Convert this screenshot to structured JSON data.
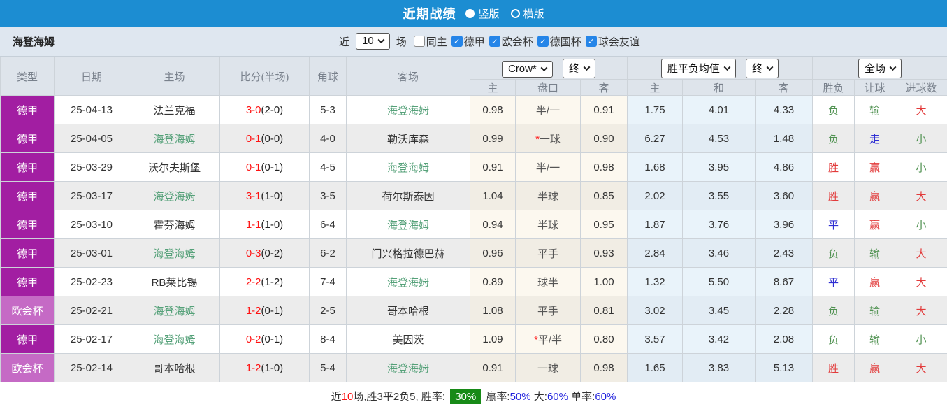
{
  "title_bar": {
    "title": "近期战绩",
    "view_options": [
      {
        "label": "竖版",
        "selected": true
      },
      {
        "label": "横版",
        "selected": false
      }
    ]
  },
  "filter_bar": {
    "team": "海登海姆",
    "recent_prefix": "近",
    "recent_count": "10",
    "recent_suffix": "场",
    "filters": [
      {
        "label": "同主",
        "checked": false
      },
      {
        "label": "德甲",
        "checked": true
      },
      {
        "label": "欧会杯",
        "checked": true
      },
      {
        "label": "德国杯",
        "checked": true
      },
      {
        "label": "球会友谊",
        "checked": true
      }
    ]
  },
  "table": {
    "controls": {
      "odds_company": "Crow*",
      "odds_stage": "终",
      "mean_label": "胜平负均值",
      "mean_stage": "终",
      "scope": "全场"
    },
    "main_headers": [
      "类型",
      "日期",
      "主场",
      "比分(半场)",
      "角球",
      "客场"
    ],
    "sub_headers": [
      "主",
      "盘口",
      "客",
      "主",
      "和",
      "客",
      "胜负",
      "让球",
      "进球数"
    ],
    "rows": [
      {
        "league": "德甲",
        "lg": "dj",
        "date": "25-04-13",
        "home": "法兰克福",
        "home_team": false,
        "score": "3-0",
        "half": "(2-0)",
        "corners": "5-3",
        "away": "海登海姆",
        "away_team": true,
        "o1": "0.98",
        "hcp": "半/一",
        "star": false,
        "o2": "0.91",
        "m1": "1.75",
        "m2": "4.01",
        "m3": "4.33",
        "res": "负",
        "res_c": "g",
        "let": "输",
        "let_c": "g",
        "goal": "大",
        "goal_c": "r"
      },
      {
        "league": "德甲",
        "lg": "dj",
        "date": "25-04-05",
        "home": "海登海姆",
        "home_team": true,
        "score": "0-1",
        "half": "(0-0)",
        "corners": "4-0",
        "away": "勒沃库森",
        "away_team": false,
        "o1": "0.99",
        "hcp": "一球",
        "star": true,
        "o2": "0.90",
        "m1": "6.27",
        "m2": "4.53",
        "m3": "1.48",
        "res": "负",
        "res_c": "g",
        "let": "走",
        "let_c": "b",
        "goal": "小",
        "goal_c": "g"
      },
      {
        "league": "德甲",
        "lg": "dj",
        "date": "25-03-29",
        "home": "沃尔夫斯堡",
        "home_team": false,
        "score": "0-1",
        "half": "(0-1)",
        "corners": "4-5",
        "away": "海登海姆",
        "away_team": true,
        "o1": "0.91",
        "hcp": "半/一",
        "star": false,
        "o2": "0.98",
        "m1": "1.68",
        "m2": "3.95",
        "m3": "4.86",
        "res": "胜",
        "res_c": "r",
        "let": "赢",
        "let_c": "r",
        "goal": "小",
        "goal_c": "g"
      },
      {
        "league": "德甲",
        "lg": "dj",
        "date": "25-03-17",
        "home": "海登海姆",
        "home_team": true,
        "score": "3-1",
        "half": "(1-0)",
        "corners": "3-5",
        "away": "荷尔斯泰因",
        "away_team": false,
        "o1": "1.04",
        "hcp": "半球",
        "star": false,
        "o2": "0.85",
        "m1": "2.02",
        "m2": "3.55",
        "m3": "3.60",
        "res": "胜",
        "res_c": "r",
        "let": "赢",
        "let_c": "r",
        "goal": "大",
        "goal_c": "r"
      },
      {
        "league": "德甲",
        "lg": "dj",
        "date": "25-03-10",
        "home": "霍芬海姆",
        "home_team": false,
        "score": "1-1",
        "half": "(1-0)",
        "corners": "6-4",
        "away": "海登海姆",
        "away_team": true,
        "o1": "0.94",
        "hcp": "半球",
        "star": false,
        "o2": "0.95",
        "m1": "1.87",
        "m2": "3.76",
        "m3": "3.96",
        "res": "平",
        "res_c": "b",
        "let": "赢",
        "let_c": "r",
        "goal": "小",
        "goal_c": "g"
      },
      {
        "league": "德甲",
        "lg": "dj",
        "date": "25-03-01",
        "home": "海登海姆",
        "home_team": true,
        "score": "0-3",
        "half": "(0-2)",
        "corners": "6-2",
        "away": "门兴格拉德巴赫",
        "away_team": false,
        "o1": "0.96",
        "hcp": "平手",
        "star": false,
        "o2": "0.93",
        "m1": "2.84",
        "m2": "3.46",
        "m3": "2.43",
        "res": "负",
        "res_c": "g",
        "let": "输",
        "let_c": "g",
        "goal": "大",
        "goal_c": "r"
      },
      {
        "league": "德甲",
        "lg": "dj",
        "date": "25-02-23",
        "home": "RB莱比锡",
        "home_team": false,
        "score": "2-2",
        "half": "(1-2)",
        "corners": "7-4",
        "away": "海登海姆",
        "away_team": true,
        "o1": "0.89",
        "hcp": "球半",
        "star": false,
        "o2": "1.00",
        "m1": "1.32",
        "m2": "5.50",
        "m3": "8.67",
        "res": "平",
        "res_c": "b",
        "let": "赢",
        "let_c": "r",
        "goal": "大",
        "goal_c": "r"
      },
      {
        "league": "欧会杯",
        "lg": "ohb",
        "date": "25-02-21",
        "home": "海登海姆",
        "home_team": true,
        "score": "1-2",
        "half": "(0-1)",
        "corners": "2-5",
        "away": "哥本哈根",
        "away_team": false,
        "o1": "1.08",
        "hcp": "平手",
        "star": false,
        "o2": "0.81",
        "m1": "3.02",
        "m2": "3.45",
        "m3": "2.28",
        "res": "负",
        "res_c": "g",
        "let": "输",
        "let_c": "g",
        "goal": "大",
        "goal_c": "r"
      },
      {
        "league": "德甲",
        "lg": "dj",
        "date": "25-02-17",
        "home": "海登海姆",
        "home_team": true,
        "score": "0-2",
        "half": "(0-1)",
        "corners": "8-4",
        "away": "美因茨",
        "away_team": false,
        "o1": "1.09",
        "hcp": "平/半",
        "star": true,
        "o2": "0.80",
        "m1": "3.57",
        "m2": "3.42",
        "m3": "2.08",
        "res": "负",
        "res_c": "g",
        "let": "输",
        "let_c": "g",
        "goal": "小",
        "goal_c": "g"
      },
      {
        "league": "欧会杯",
        "lg": "ohb",
        "date": "25-02-14",
        "home": "哥本哈根",
        "home_team": false,
        "score": "1-2",
        "half": "(1-0)",
        "corners": "5-4",
        "away": "海登海姆",
        "away_team": true,
        "o1": "0.91",
        "hcp": "一球",
        "star": false,
        "o2": "0.98",
        "m1": "1.65",
        "m2": "3.83",
        "m3": "5.13",
        "res": "胜",
        "res_c": "r",
        "let": "赢",
        "let_c": "r",
        "goal": "大",
        "goal_c": "r"
      }
    ]
  },
  "footer": {
    "segments": [
      {
        "t": "近",
        "c": "dark"
      },
      {
        "t": "10",
        "c": "red"
      },
      {
        "t": "场,胜3平2负5, 胜率: ",
        "c": "dark"
      },
      {
        "t": "30%",
        "c": "badge"
      },
      {
        "t": " 赢率:",
        "c": "dark"
      },
      {
        "t": "50%",
        "c": "blue"
      },
      {
        "t": " 大:",
        "c": "dark"
      },
      {
        "t": "60%",
        "c": "blue"
      },
      {
        "t": " 单率:",
        "c": "dark"
      },
      {
        "t": "60%",
        "c": "blue"
      }
    ]
  },
  "colors": {
    "top_bar_blue": "#1c8dd2",
    "filter_bar_bg": "#dfe7f0",
    "header_bg": "#dee4eb",
    "league_bundesliga_purple": "#a21ea2",
    "league_conference_orchid": "#c56ac5",
    "team_highlight_green": "#55a179",
    "score_red": "#ff1212",
    "win_red": "#e23b3b",
    "lose_green": "#4f9150",
    "draw_blue": "#2f2fd3",
    "checkbox_blue": "#2585e8",
    "rate_badge_green": "#178a17",
    "rate_value_blue": "#2020dd"
  }
}
